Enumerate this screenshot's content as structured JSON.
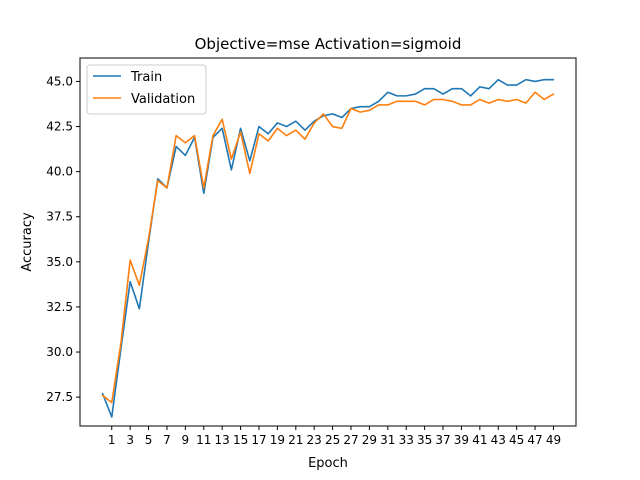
{
  "chart_data": {
    "type": "line",
    "title": "Objective=mse Activation=sigmoid",
    "xlabel": "Epoch",
    "ylabel": "Accuracy",
    "xlim": [
      -2.45,
      51.45
    ],
    "ylim": [
      25.9,
      46.3
    ],
    "xticks": [
      "1",
      "3",
      "5",
      "7",
      "9",
      "11",
      "13",
      "15",
      "17",
      "19",
      "21",
      "23",
      "25",
      "27",
      "29",
      "31",
      "33",
      "35",
      "37",
      "39",
      "41",
      "43",
      "45",
      "47",
      "49"
    ],
    "yticks": [
      "27.5",
      "30.0",
      "32.5",
      "35.0",
      "37.5",
      "40.0",
      "42.5",
      "45.0"
    ],
    "legend_position": "upper-left",
    "grid": false,
    "x": [
      0,
      1,
      2,
      3,
      4,
      5,
      6,
      7,
      8,
      9,
      10,
      11,
      12,
      13,
      14,
      15,
      16,
      17,
      18,
      19,
      20,
      21,
      22,
      23,
      24,
      25,
      26,
      27,
      28,
      29,
      30,
      31,
      32,
      33,
      34,
      35,
      36,
      37,
      38,
      39,
      40,
      41,
      42,
      43,
      44,
      45,
      46,
      47,
      48,
      49
    ],
    "series": [
      {
        "name": "Train",
        "color": "#1f77b4",
        "values": [
          27.7,
          26.4,
          30.2,
          33.9,
          32.4,
          36.1,
          39.6,
          39.1,
          41.4,
          40.9,
          41.9,
          38.8,
          41.9,
          42.4,
          40.1,
          42.4,
          40.6,
          42.5,
          42.1,
          42.7,
          42.5,
          42.8,
          42.3,
          42.8,
          43.1,
          43.2,
          43.0,
          43.5,
          43.6,
          43.6,
          43.9,
          44.4,
          44.2,
          44.2,
          44.3,
          44.6,
          44.6,
          44.3,
          44.6,
          44.6,
          44.2,
          44.7,
          44.6,
          45.1,
          44.8,
          44.8,
          45.1,
          45.0,
          45.1,
          45.1
        ]
      },
      {
        "name": "Validation",
        "color": "#ff7f0e",
        "values": [
          27.6,
          27.2,
          30.5,
          35.1,
          33.7,
          36.3,
          39.5,
          39.1,
          42.0,
          41.6,
          42.0,
          39.1,
          42.0,
          42.9,
          40.7,
          42.2,
          39.9,
          42.1,
          41.7,
          42.4,
          42.0,
          42.3,
          41.8,
          42.7,
          43.2,
          42.5,
          42.4,
          43.5,
          43.3,
          43.4,
          43.7,
          43.7,
          43.9,
          43.9,
          43.9,
          43.7,
          44.0,
          44.0,
          43.9,
          43.7,
          43.7,
          44.0,
          43.8,
          44.0,
          43.9,
          44.0,
          43.8,
          44.4,
          44.0,
          44.3
        ]
      }
    ]
  }
}
